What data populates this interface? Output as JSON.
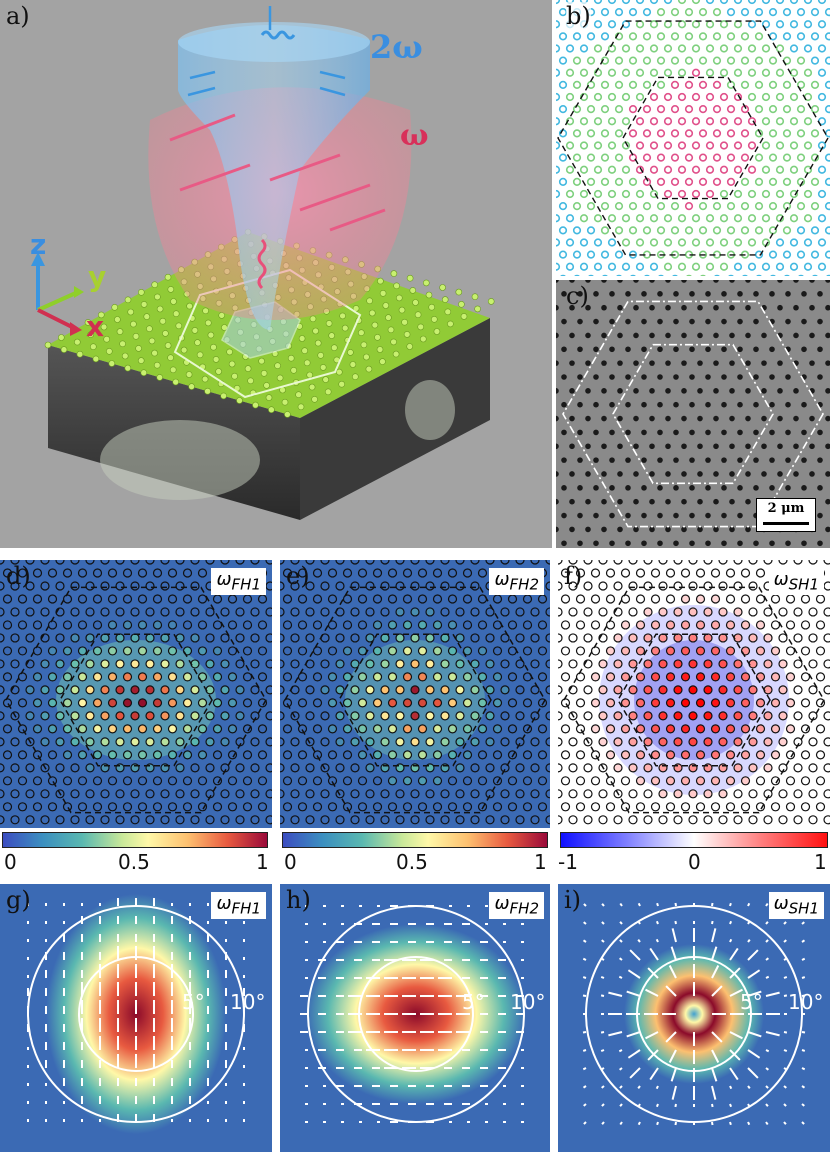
{
  "figure": {
    "panel_a": {
      "label": "a)",
      "beam_2w": "2ω",
      "beam_w": "ω",
      "axis_z": "z",
      "axis_y": "y",
      "axis_x": "x"
    },
    "panel_b": {
      "label": "b)"
    },
    "panel_c": {
      "label": "c)",
      "scale_bar": "2 μm"
    },
    "panel_d": {
      "label": "d)",
      "mode": "ω",
      "mode_sub": "FH1"
    },
    "panel_e": {
      "label": "e)",
      "mode": "ω",
      "mode_sub": "FH2"
    },
    "panel_f": {
      "label": "f)",
      "mode": "ω",
      "mode_sub": "SH1"
    },
    "panel_g": {
      "label": "g)",
      "mode": "ω",
      "mode_sub": "FH1",
      "ring_inner": "5°",
      "ring_outer": "10°"
    },
    "panel_h": {
      "label": "h)",
      "mode": "ω",
      "mode_sub": "FH2",
      "ring_inner": "5°",
      "ring_outer": "10°"
    },
    "panel_i": {
      "label": "i)",
      "mode": "ω",
      "mode_sub": "SH1",
      "ring_inner": "5°",
      "ring_outer": "10°"
    },
    "colorbar_1": {
      "min": "0",
      "mid": "0.5",
      "max": "1"
    },
    "colorbar_2": {
      "min": "0",
      "mid": "0.5",
      "max": "1"
    },
    "colorbar_3": {
      "min": "-1",
      "mid": "0",
      "max": "1"
    }
  },
  "colors": {
    "background_a": "#a3a3a3",
    "field_bg": "#3b6ab4",
    "hot": "#8b0a2a",
    "green_layer": "#a6e22e",
    "blue_beam": "#6ab4ec",
    "red_beam": "#f07090"
  }
}
